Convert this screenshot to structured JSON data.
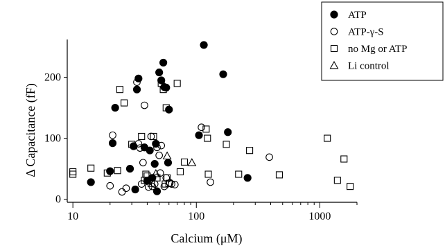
{
  "chart_data": {
    "type": "scatter",
    "xlabel": "Calcium (μM)",
    "ylabel": "Δ Capacitance (fF)",
    "x_scale": "log",
    "xlim": [
      9,
      2000
    ],
    "ylim": [
      -5,
      262
    ],
    "x_ticks": [
      10,
      100,
      1000
    ],
    "x_tick_labels": [
      "10",
      "100",
      "1000"
    ],
    "y_ticks": [
      0,
      100,
      200
    ],
    "y_tick_labels": [
      "0",
      "100",
      "200"
    ],
    "grid": false,
    "legend_position": "top-right",
    "series": [
      {
        "name": "ATP",
        "marker": "filled-circle",
        "points": [
          [
            14,
            28
          ],
          [
            20,
            46
          ],
          [
            21,
            92
          ],
          [
            22,
            150
          ],
          [
            29,
            50
          ],
          [
            31,
            87
          ],
          [
            32,
            16
          ],
          [
            33,
            180
          ],
          [
            34,
            198
          ],
          [
            38,
            85
          ],
          [
            40,
            30
          ],
          [
            42,
            80
          ],
          [
            44,
            35
          ],
          [
            46,
            58
          ],
          [
            47,
            91
          ],
          [
            48,
            13
          ],
          [
            50,
            208
          ],
          [
            52,
            195
          ],
          [
            54,
            224
          ],
          [
            55,
            184
          ],
          [
            57,
            183
          ],
          [
            59,
            60
          ],
          [
            60,
            147
          ],
          [
            105,
            105
          ],
          [
            115,
            253
          ],
          [
            165,
            205
          ],
          [
            180,
            110
          ],
          [
            260,
            35
          ]
        ]
      },
      {
        "name": "ATP-γ-S",
        "marker": "open-circle",
        "points": [
          [
            20,
            22
          ],
          [
            21,
            105
          ],
          [
            25,
            12
          ],
          [
            27,
            18
          ],
          [
            33,
            192
          ],
          [
            34,
            91
          ],
          [
            35,
            84
          ],
          [
            36,
            25
          ],
          [
            37,
            60
          ],
          [
            38,
            154
          ],
          [
            41,
            20
          ],
          [
            42,
            32
          ],
          [
            43,
            103
          ],
          [
            44,
            21
          ],
          [
            46,
            25
          ],
          [
            48,
            85
          ],
          [
            50,
            72
          ],
          [
            51,
            43
          ],
          [
            52,
            88
          ],
          [
            55,
            21
          ],
          [
            57,
            35
          ],
          [
            61,
            27
          ],
          [
            63,
            25
          ],
          [
            67,
            24
          ],
          [
            110,
            118
          ],
          [
            130,
            28
          ],
          [
            390,
            69
          ]
        ]
      },
      {
        "name": "no Mg or ATP",
        "marker": "open-square",
        "points": [
          [
            10,
            45
          ],
          [
            10,
            41
          ],
          [
            14,
            51
          ],
          [
            19,
            43
          ],
          [
            23,
            47
          ],
          [
            24,
            180
          ],
          [
            26,
            158
          ],
          [
            30,
            90
          ],
          [
            36,
            103
          ],
          [
            38,
            31
          ],
          [
            39,
            41
          ],
          [
            40,
            38
          ],
          [
            43,
            26
          ],
          [
            45,
            103
          ],
          [
            48,
            35
          ],
          [
            52,
            190
          ],
          [
            54,
            180
          ],
          [
            56,
            25
          ],
          [
            57,
            150
          ],
          [
            58,
            35
          ],
          [
            60,
            26
          ],
          [
            70,
            190
          ],
          [
            74,
            45
          ],
          [
            80,
            61
          ],
          [
            120,
            115
          ],
          [
            123,
            100
          ],
          [
            125,
            41
          ],
          [
            175,
            90
          ],
          [
            220,
            41
          ],
          [
            270,
            80
          ],
          [
            470,
            40
          ],
          [
            1150,
            100
          ],
          [
            1390,
            31
          ],
          [
            1570,
            66
          ],
          [
            1760,
            21
          ]
        ]
      },
      {
        "name": "Li control",
        "marker": "open-triangle",
        "points": [
          [
            47,
            42
          ],
          [
            58,
            71
          ],
          [
            92,
            60
          ]
        ]
      }
    ]
  }
}
